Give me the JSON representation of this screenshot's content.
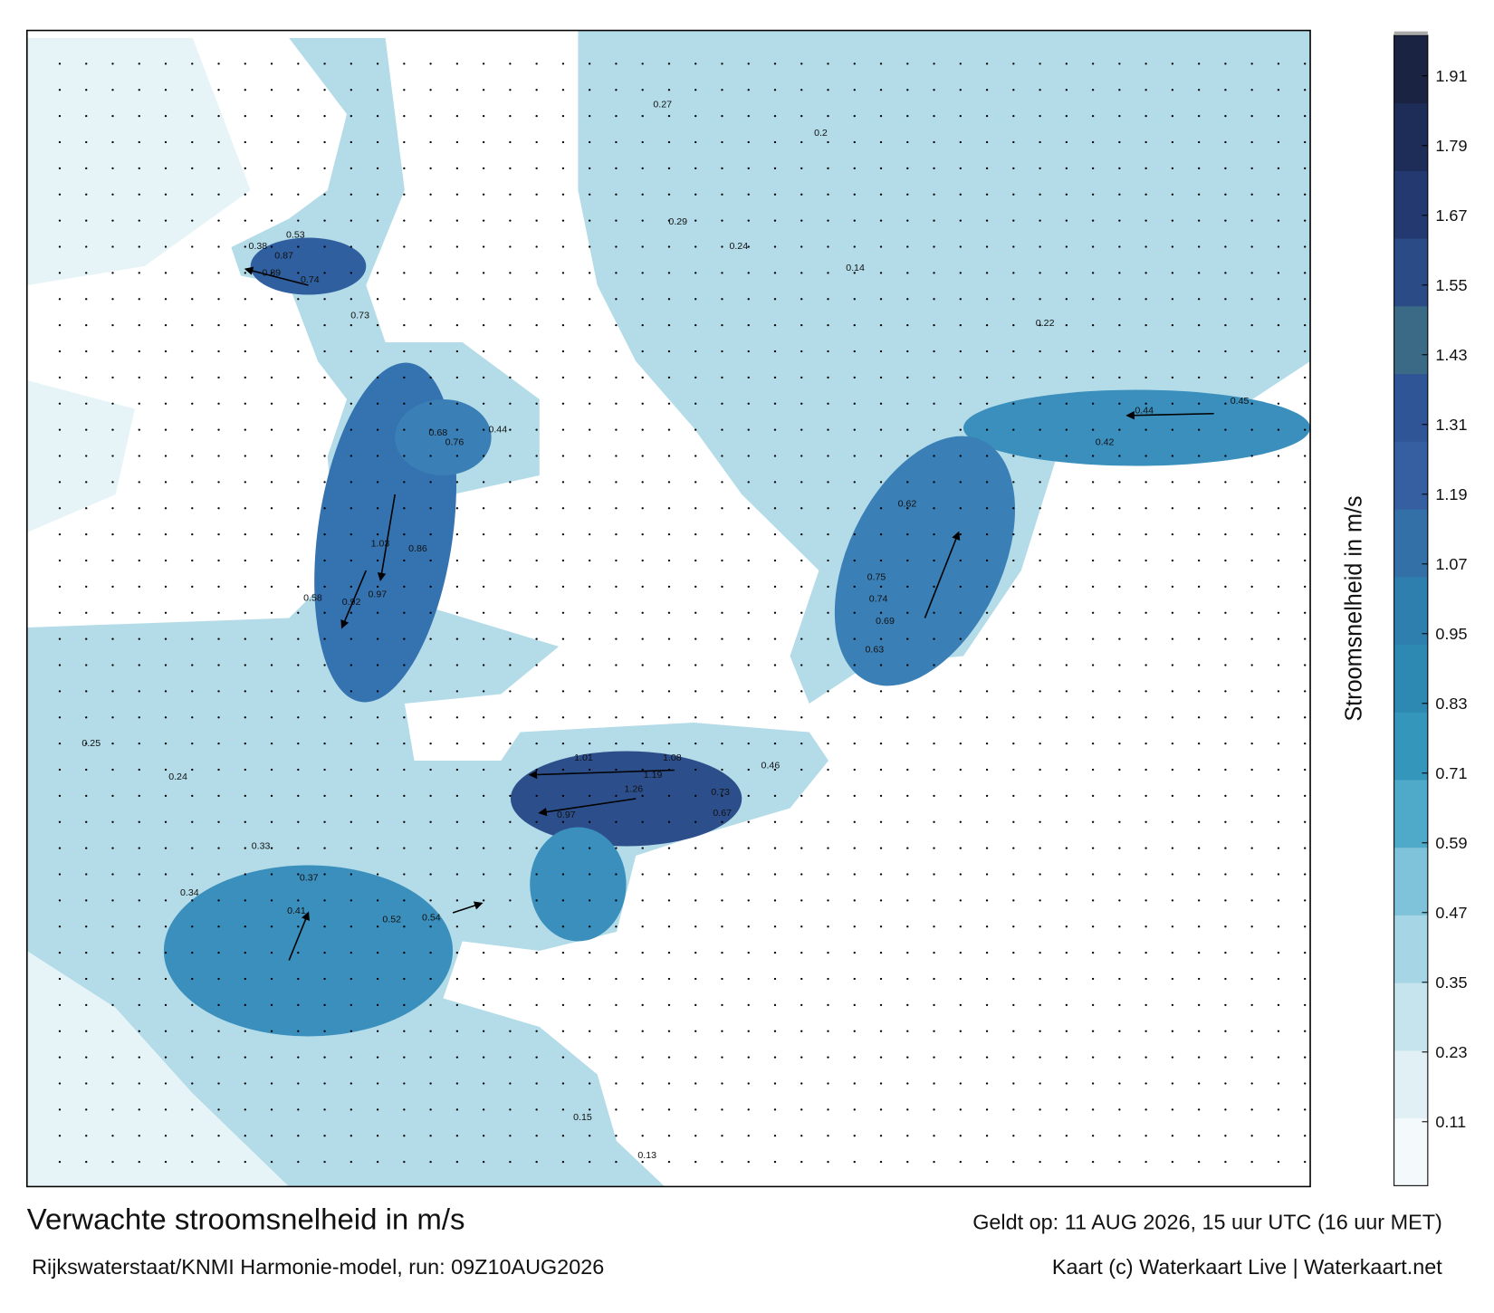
{
  "header": {
    "title": "Verwachte stroomsnelheid in m/s",
    "valid": "Geldt op: 11 AUG 2026, 15 uur UTC (16 uur MET)",
    "model": "Rijkswaterstaat/KNMI Harmonie-model, run: 09Z10AUG2026",
    "credit": "Kaart (c) Waterkaart Live | Waterkaart.net"
  },
  "colorbar": {
    "label": "Stroomsnelheid in m/s",
    "range": [
      0,
      1.98
    ],
    "ticks": [
      0.11,
      0.23,
      0.35,
      0.47,
      0.59,
      0.71,
      0.83,
      0.95,
      1.07,
      1.19,
      1.31,
      1.43,
      1.55,
      1.67,
      1.79,
      1.91
    ],
    "colors": [
      "#f4fafc",
      "#e0f0f5",
      "#c6e4ee",
      "#a6d5e5",
      "#7fc3da",
      "#4fa9c8",
      "#3596bb",
      "#2d88b2",
      "#2f7fae",
      "#3470a8",
      "#355fa0",
      "#2f5597",
      "#3a6a86",
      "#2b4b86",
      "#24396f",
      "#1e2d58",
      "#1b2343"
    ]
  },
  "map": {
    "labels": [
      0.87,
      0.89,
      0.74,
      0.53,
      0.38,
      0.73,
      0.68,
      0.76,
      0.44,
      1.03,
      0.86,
      0.92,
      0.58,
      0.97,
      1.01,
      1.08,
      1.19,
      1.26,
      0.97,
      0.73,
      0.67,
      0.46,
      0.62,
      0.75,
      0.74,
      0.69,
      0.63,
      0.44,
      0.45,
      0.42,
      0.24,
      0.27,
      0.29,
      0.2,
      0.14,
      0.22,
      0.34,
      0.37,
      0.41,
      0.52,
      0.54,
      0.25,
      0.24,
      0.33,
      0.15,
      0.13
    ]
  }
}
